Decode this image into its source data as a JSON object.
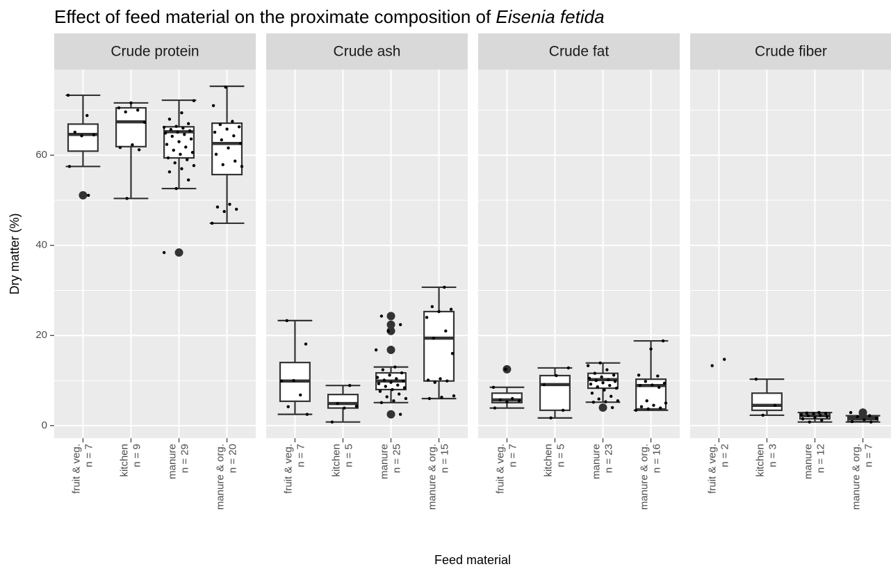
{
  "chart_data": {
    "type": "boxplot",
    "title": "Effect of feed material on the proximate composition of ",
    "title_italic": "Eisenia fetida",
    "x_label": "Feed material",
    "y_label": "Dry matter (%)",
    "ylim": [
      -2.8,
      79
    ],
    "yticks": [
      0,
      20,
      40,
      60
    ],
    "minor_yticks": [
      10,
      30,
      50,
      70
    ],
    "grid": true,
    "panels": [
      {
        "name": "Crude protein",
        "groups": [
          {
            "category": "fruit & veg.",
            "n_label": "n = 7",
            "box": {
              "low": 57.5,
              "q1": 60.9,
              "median": 64.6,
              "q3": 66.9,
              "high": 73.3
            },
            "outliers": [
              51.1
            ],
            "points": [
              73.3,
              68.8,
              65.1,
              64.5,
              64.3,
              57.5,
              51.1
            ]
          },
          {
            "category": "kitchen",
            "n_label": "n = 9",
            "box": {
              "low": 50.4,
              "q1": 61.9,
              "median": 67.4,
              "q3": 70.5,
              "high": 71.6
            },
            "outliers": [],
            "points": [
              71.6,
              70.5,
              70.0,
              69.6,
              67.3,
              62.3,
              61.7,
              61.2,
              50.4
            ]
          },
          {
            "category": "manure",
            "n_label": "n = 29",
            "box": {
              "low": 52.6,
              "q1": 59.4,
              "median": 65.2,
              "q3": 66.3,
              "high": 72.2
            },
            "outliers": [
              38.4
            ],
            "points": [
              72.1,
              69.4,
              68.0,
              67.0,
              66.4,
              66.2,
              66.0,
              65.7,
              65.4,
              65.1,
              64.9,
              64.6,
              64.2,
              63.6,
              63.0,
              62.4,
              61.8,
              61.1,
              60.6,
              60.2,
              59.4,
              59.0,
              58.3,
              57.7,
              57.0,
              56.3,
              54.5,
              52.6,
              38.4
            ]
          },
          {
            "category": "manure & org.",
            "n_label": "n = 20",
            "box": {
              "low": 44.9,
              "q1": 55.7,
              "median": 62.6,
              "q3": 67.1,
              "high": 75.3
            },
            "outliers": [],
            "points": [
              75.1,
              71.0,
              67.5,
              66.8,
              66.3,
              65.8,
              65.1,
              64.3,
              63.4,
              62.6,
              61.6,
              60.2,
              58.7,
              57.9,
              57.5,
              49.1,
              48.5,
              48.0,
              47.5,
              44.9
            ]
          }
        ]
      },
      {
        "name": "Crude ash",
        "groups": [
          {
            "category": "fruit & veg.",
            "n_label": "n = 7",
            "box": {
              "low": 2.5,
              "q1": 5.4,
              "median": 9.9,
              "q3": 14.0,
              "high": 23.3
            },
            "outliers": [],
            "points": [
              23.3,
              18.1,
              10.0,
              9.9,
              6.8,
              4.2,
              2.5
            ]
          },
          {
            "category": "kitchen",
            "n_label": "n = 5",
            "box": {
              "low": 0.8,
              "q1": 3.9,
              "median": 4.9,
              "q3": 6.9,
              "high": 8.9
            },
            "outliers": [],
            "points": [
              8.9,
              4.9,
              4.3,
              3.9,
              0.8
            ]
          },
          {
            "category": "manure",
            "n_label": "n = 25",
            "box": {
              "low": 5.1,
              "q1": 8.0,
              "median": 9.9,
              "q3": 11.7,
              "high": 13.0
            },
            "outliers": [
              24.3,
              22.4,
              21.0,
              16.8,
              2.5
            ],
            "points": [
              24.3,
              22.4,
              21.0,
              16.8,
              13.0,
              12.4,
              11.7,
              11.2,
              10.7,
              10.4,
              10.1,
              9.9,
              9.6,
              9.3,
              9.0,
              8.7,
              8.4,
              8.0,
              7.6,
              7.0,
              6.4,
              6.0,
              5.5,
              5.1,
              2.5
            ]
          },
          {
            "category": "manure & org.",
            "n_label": "n = 15",
            "box": {
              "low": 6.0,
              "q1": 9.9,
              "median": 19.4,
              "q3": 25.3,
              "high": 30.7
            },
            "outliers": [],
            "points": [
              30.7,
              26.4,
              25.8,
              25.3,
              24.0,
              21.0,
              19.4,
              16.0,
              10.4,
              10.1,
              9.9,
              9.6,
              6.6,
              6.3,
              6.0
            ]
          }
        ]
      },
      {
        "name": "Crude fat",
        "groups": [
          {
            "category": "fruit & veg.",
            "n_label": "n = 7",
            "box": {
              "low": 3.9,
              "q1": 5.1,
              "median": 5.7,
              "q3": 7.2,
              "high": 8.5
            },
            "outliers": [
              12.5
            ],
            "points": [
              12.5,
              8.5,
              6.0,
              5.7,
              5.5,
              5.3,
              3.9
            ]
          },
          {
            "category": "kitchen",
            "n_label": "n = 5",
            "box": {
              "low": 1.7,
              "q1": 3.4,
              "median": 9.1,
              "q3": 11.1,
              "high": 12.8
            },
            "outliers": [],
            "points": [
              12.8,
              11.1,
              9.1,
              3.4,
              1.7
            ]
          },
          {
            "category": "manure",
            "n_label": "n = 23",
            "box": {
              "low": 5.2,
              "q1": 8.3,
              "median": 10.2,
              "q3": 11.6,
              "high": 13.9
            },
            "outliers": [
              4.0
            ],
            "points": [
              13.9,
              13.3,
              12.4,
              11.6,
              11.2,
              10.8,
              10.5,
              10.2,
              10.0,
              9.8,
              9.5,
              9.2,
              8.9,
              8.6,
              8.3,
              7.9,
              7.2,
              6.5,
              5.9,
              5.5,
              5.3,
              5.2,
              4.0
            ]
          },
          {
            "category": "manure & org.",
            "n_label": "n = 16",
            "box": {
              "low": 3.4,
              "q1": 3.7,
              "median": 8.9,
              "q3": 10.3,
              "high": 18.8
            },
            "outliers": [],
            "points": [
              18.8,
              17.0,
              11.2,
              11.0,
              9.8,
              9.4,
              9.0,
              8.9,
              8.5,
              5.5,
              5.0,
              4.5,
              4.2,
              3.9,
              3.7,
              3.4
            ]
          }
        ]
      },
      {
        "name": "Crude fiber",
        "groups": [
          {
            "category": "fruit & veg.",
            "n_label": "n = 2",
            "box": null,
            "outliers": [],
            "points": [
              14.7,
              13.3
            ]
          },
          {
            "category": "kitchen",
            "n_label": "n = 3",
            "box": {
              "low": 2.3,
              "q1": 3.4,
              "median": 4.5,
              "q3": 7.2,
              "high": 10.3
            },
            "outliers": [],
            "points": [
              10.3,
              4.5,
              2.3
            ]
          },
          {
            "category": "manure",
            "n_label": "n = 12",
            "box": {
              "low": 0.8,
              "q1": 1.5,
              "median": 2.2,
              "q3": 2.8,
              "high": 2.9
            },
            "outliers": [],
            "points": [
              2.9,
              2.8,
              2.7,
              2.6,
              2.4,
              2.3,
              2.2,
              2.0,
              1.8,
              1.5,
              1.2,
              0.8
            ]
          },
          {
            "category": "manure & org.",
            "n_label": "n = 7",
            "box": {
              "low": 0.8,
              "q1": 0.9,
              "median": 1.5,
              "q3": 2.0,
              "high": 2.2
            },
            "outliers": [
              2.9
            ],
            "points": [
              2.9,
              2.2,
              2.0,
              1.6,
              1.3,
              0.9,
              0.8
            ]
          }
        ]
      }
    ]
  }
}
